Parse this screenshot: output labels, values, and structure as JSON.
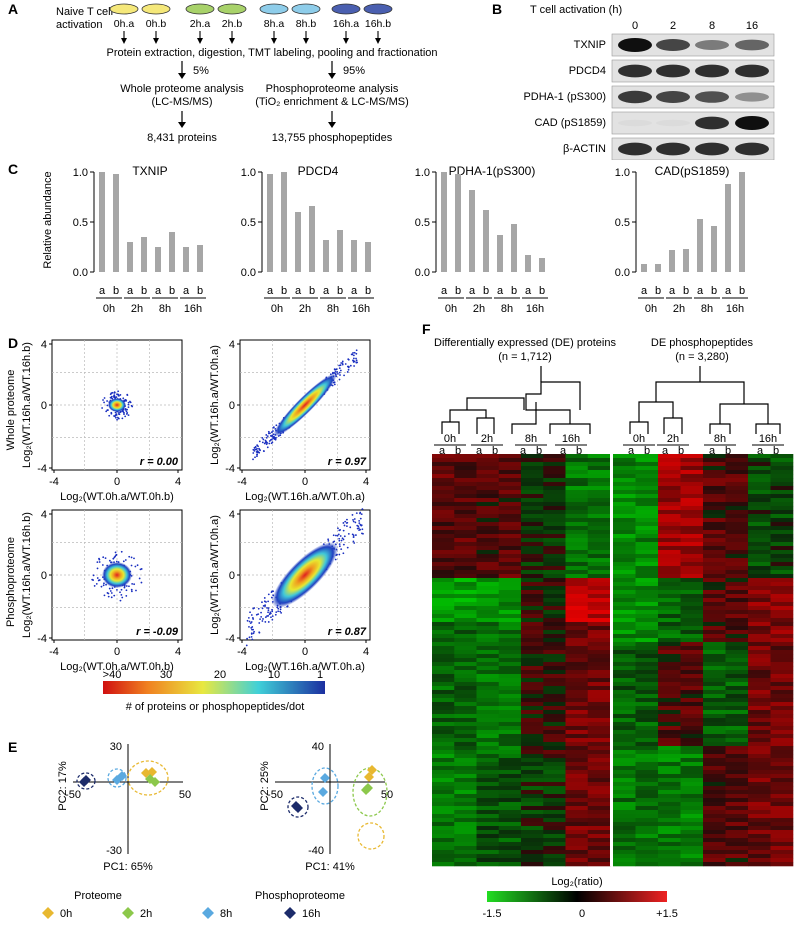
{
  "panel_labels": [
    "A",
    "B",
    "C",
    "D",
    "E",
    "F"
  ],
  "panelA": {
    "start_label": [
      "Naive T cell",
      "activation"
    ],
    "samples": [
      "0h.a",
      "0h.b",
      "2h.a",
      "2h.b",
      "8h.a",
      "8h.b",
      "16h.a",
      "16h.b"
    ],
    "sample_colors": [
      "#f5e87a",
      "#f5e87a",
      "#a8d26a",
      "#a8d26a",
      "#8ecdea",
      "#8ecdea",
      "#4a5fb0",
      "#4a5fb0"
    ],
    "step": "Protein extraction, digestion, TMT labeling, pooling and fractionation",
    "left_pct": "5%",
    "right_pct": "95%",
    "left_title": [
      "Whole proteome analysis",
      "(LC-MS/MS)"
    ],
    "right_title": [
      "Phosphoproteome analysis",
      "(TiO₂ enrichment & LC-MS/MS)"
    ],
    "left_result": "8,431 proteins",
    "right_result": "13,755 phosphopeptides"
  },
  "panelB": {
    "header": "T cell activation (h)",
    "times": [
      "0",
      "2",
      "8",
      "16"
    ],
    "rows": [
      "TXNIP",
      "PDCD4",
      "PDHA-1 (pS300)",
      "CAD (pS1859)",
      "β-ACTIN"
    ]
  },
  "panelC": {
    "ylabel": "Relative abundance",
    "yticks": [
      "1.0",
      "0.5",
      "0.0"
    ],
    "replicates": [
      "a",
      "b"
    ],
    "timepoints": [
      "0h",
      "2h",
      "8h",
      "16h"
    ],
    "chart_data": [
      {
        "type": "bar",
        "title": "TXNIP",
        "values": [
          1.0,
          0.98,
          0.3,
          0.35,
          0.25,
          0.4,
          0.25,
          0.27
        ],
        "ylim": [
          0,
          1.0
        ]
      },
      {
        "type": "bar",
        "title": "PDCD4",
        "values": [
          0.98,
          1.0,
          0.6,
          0.66,
          0.32,
          0.42,
          0.32,
          0.3
        ],
        "ylim": [
          0,
          1.0
        ]
      },
      {
        "type": "bar",
        "title": "PDHA-1(pS300)",
        "values": [
          1.0,
          0.98,
          0.82,
          0.62,
          0.37,
          0.48,
          0.17,
          0.14
        ],
        "ylim": [
          0,
          1.0
        ]
      },
      {
        "type": "bar",
        "title": "CAD(pS1859)",
        "values": [
          0.08,
          0.08,
          0.22,
          0.23,
          0.53,
          0.46,
          0.88,
          1.0
        ],
        "ylim": [
          0,
          1.0
        ]
      }
    ]
  },
  "panelD": {
    "row_labels": [
      "Whole proteome",
      "Phosphoproteome"
    ],
    "plots": [
      {
        "ylabel": "Log₂(WT.16h.a/WT.16h.b)",
        "xlabel": "Log₂(WT.0h.a/WT.0h.b)",
        "r": "r = 0.00"
      },
      {
        "ylabel": "Log₂(WT.16h.a/WT.0h.a)",
        "xlabel": "Log₂(WT.16h.a/WT.0h.a)",
        "r": "r = 0.97"
      },
      {
        "ylabel": "Log₂(WT.16h.a/WT.16h.b)",
        "xlabel": "Log₂(WT.0h.a/WT.0h.b)",
        "r": "r = -0.09"
      },
      {
        "ylabel": "Log₂(WT.16h.a/WT.0h.a)",
        "xlabel": "Log₂(WT.16h.a/WT.0h.a)",
        "r": "r = 0.87"
      }
    ],
    "axis_ticks": [
      "4",
      "0",
      "-4"
    ],
    "colorbar_ticks": [
      ">40",
      "30",
      "20",
      "10",
      "1"
    ],
    "colorbar_label": "# of proteins or phosphopeptides/dot"
  },
  "panelE": {
    "plots": [
      {
        "title": "Proteome",
        "pc1": "PC1: 65%",
        "pc2": "PC2: 17%",
        "ytop": "30",
        "ybot": "-30",
        "xleft": "-50",
        "xright": "50"
      },
      {
        "title": "Phosphoproteome",
        "pc1": "PC1: 41%",
        "pc2": "PC2: 25%",
        "ytop": "40",
        "ybot": "-40",
        "xleft": "-50",
        "xright": "50"
      }
    ],
    "legend": [
      {
        "label": "0h",
        "color": "#e8b830"
      },
      {
        "label": "2h",
        "color": "#8cc84b"
      },
      {
        "label": "8h",
        "color": "#5aa9e0"
      },
      {
        "label": "16h",
        "color": "#1c2b6a"
      }
    ]
  },
  "panelF": {
    "left_title": "Differentially expressed (DE) proteins",
    "left_n": "(n = 1,712)",
    "right_title": "DE phosphopeptides",
    "right_n": "(n = 3,280)",
    "timepoints": [
      "0h",
      "2h",
      "8h",
      "16h"
    ],
    "replicates": [
      "a",
      "b"
    ],
    "scale_label": "Log₂(ratio)",
    "scale_ticks": [
      "-1.5",
      "0",
      "+1.5"
    ]
  }
}
